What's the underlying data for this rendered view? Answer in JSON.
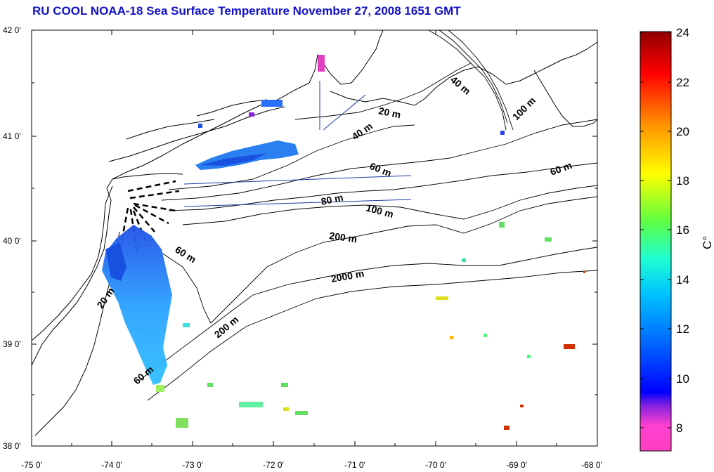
{
  "title": "RU COOL  NOAA-18 Sea Surface Temperature November 27, 2008 1651 GMT",
  "axes": {
    "x_ticks": [
      "-75 0'",
      "-74 0'",
      "-73 0'",
      "-72 0'",
      "-71 0'",
      "-70 0'",
      "-69 0'",
      "-68 0'"
    ],
    "y_ticks": [
      "42 0'",
      "41 0'",
      "40 0'",
      "39 0'",
      "38 0'"
    ]
  },
  "depth_labels": {
    "d20a": "20 m",
    "d40a": "40 m",
    "d40b": "40 m",
    "d100a": "100 m",
    "d60a": "60 m",
    "d60b": "60 m",
    "d80": "80 m",
    "d100b": "100 m",
    "d200a": "200 m",
    "d60c": "60 m",
    "d2000": "2000 m",
    "d20b": "20 m",
    "d200b": "200 m",
    "d60d": "60 m"
  },
  "colorbar": {
    "ticks": [
      "24",
      "22",
      "20",
      "18",
      "16",
      "14",
      "12",
      "10",
      "8"
    ],
    "unit": "C°",
    "colors": [
      "#ff40c0",
      "#8020e0",
      "#0000ff",
      "#0090ff",
      "#00e8ff",
      "#40ff80",
      "#ffff00",
      "#ff9000",
      "#ff0000",
      "#900000"
    ]
  },
  "colors": {
    "title": "#1010c8",
    "track": "#1a3aa0",
    "sst_cool": "#2a70f0",
    "sst_mid": "#2aa8ff"
  }
}
